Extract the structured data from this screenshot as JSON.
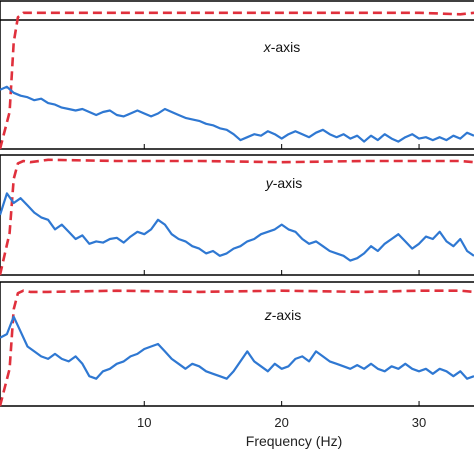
{
  "chart_data": {
    "type": "line",
    "xlabel": "Frequency (Hz)",
    "xlim": [
      -0.5,
      34
    ],
    "x_ticks": [
      "10",
      "20",
      "30"
    ],
    "x_tick_values": [
      10,
      20,
      30
    ],
    "colors": {
      "signal": "#2f78d2",
      "envelope": "#e0303c",
      "frame": "#000000"
    },
    "panels": [
      {
        "label_prefix": "x",
        "label_suffix": "-axis",
        "ylim": [
          0,
          1
        ],
        "series": [
          {
            "style": "dashed",
            "color": "#e0303c",
            "x": [
              -0.5,
              0.2,
              0.5,
              0.8,
              1.2,
              1.7,
              3,
              8,
              14,
              20,
              26,
              30,
              33,
              34
            ],
            "y": [
              0.0,
              0.25,
              0.72,
              0.89,
              0.92,
              0.92,
              0.92,
              0.92,
              0.92,
              0.92,
              0.92,
              0.92,
              0.91,
              0.92
            ]
          },
          {
            "style": "solid",
            "color": "#2f78d2",
            "x": [
              -0.5,
              0,
              0.5,
              1,
              1.5,
              2,
              2.5,
              3,
              3.5,
              4,
              4.5,
              5,
              5.5,
              6,
              6.5,
              7,
              7.5,
              8,
              8.5,
              9,
              9.5,
              10,
              10.5,
              11,
              11.5,
              12,
              12.5,
              13,
              13.5,
              14,
              14.5,
              15,
              15.5,
              16,
              16.5,
              17,
              17.5,
              18,
              18.5,
              19,
              19.5,
              20,
              20.5,
              21,
              21.5,
              22,
              22.5,
              23,
              23.5,
              24,
              24.5,
              25,
              25.5,
              26,
              26.5,
              27,
              27.5,
              28,
              28.5,
              29,
              29.5,
              30,
              30.5,
              31,
              31.5,
              32,
              32.5,
              33,
              33.5,
              34
            ],
            "y": [
              0.4,
              0.42,
              0.38,
              0.36,
              0.35,
              0.33,
              0.34,
              0.31,
              0.3,
              0.28,
              0.27,
              0.26,
              0.27,
              0.25,
              0.23,
              0.25,
              0.26,
              0.23,
              0.22,
              0.24,
              0.26,
              0.24,
              0.22,
              0.24,
              0.27,
              0.25,
              0.23,
              0.21,
              0.2,
              0.19,
              0.17,
              0.16,
              0.14,
              0.13,
              0.1,
              0.06,
              0.08,
              0.1,
              0.09,
              0.12,
              0.1,
              0.07,
              0.1,
              0.12,
              0.1,
              0.08,
              0.11,
              0.13,
              0.1,
              0.08,
              0.1,
              0.07,
              0.09,
              0.05,
              0.09,
              0.06,
              0.1,
              0.07,
              0.05,
              0.08,
              0.1,
              0.07,
              0.08,
              0.06,
              0.08,
              0.06,
              0.09,
              0.07,
              0.11,
              0.09
            ]
          }
        ]
      },
      {
        "label_prefix": "y",
        "label_suffix": "-axis",
        "ylim": [
          0,
          1
        ],
        "series": [
          {
            "style": "dashed",
            "color": "#e0303c",
            "x": [
              -0.5,
              0.2,
              0.5,
              0.8,
              1.2,
              1.7,
              3,
              8,
              14,
              20,
              26,
              30,
              33,
              34
            ],
            "y": [
              0.0,
              0.35,
              0.8,
              0.93,
              0.95,
              0.94,
              0.96,
              0.95,
              0.95,
              0.94,
              0.95,
              0.95,
              0.95,
              0.94
            ]
          },
          {
            "style": "solid",
            "color": "#2f78d2",
            "x": [
              -0.5,
              0,
              0.5,
              1,
              1.5,
              2,
              2.5,
              3,
              3.5,
              4,
              4.5,
              5,
              5.5,
              6,
              6.5,
              7,
              7.5,
              8,
              8.5,
              9,
              9.5,
              10,
              10.5,
              11,
              11.5,
              12,
              12.5,
              13,
              13.5,
              14,
              14.5,
              15,
              15.5,
              16,
              16.5,
              17,
              17.5,
              18,
              18.5,
              19,
              19.5,
              20,
              20.5,
              21,
              21.5,
              22,
              22.5,
              23,
              23.5,
              24,
              24.5,
              25,
              25.5,
              26,
              26.5,
              27,
              27.5,
              28,
              28.5,
              29,
              29.5,
              30,
              30.5,
              31,
              31.5,
              32,
              32.5,
              33,
              33.5,
              34
            ],
            "y": [
              0.5,
              0.68,
              0.6,
              0.64,
              0.58,
              0.52,
              0.48,
              0.46,
              0.38,
              0.42,
              0.36,
              0.3,
              0.33,
              0.26,
              0.28,
              0.27,
              0.3,
              0.31,
              0.27,
              0.32,
              0.36,
              0.34,
              0.38,
              0.46,
              0.42,
              0.34,
              0.3,
              0.28,
              0.24,
              0.22,
              0.18,
              0.2,
              0.16,
              0.18,
              0.22,
              0.24,
              0.28,
              0.3,
              0.34,
              0.36,
              0.38,
              0.42,
              0.38,
              0.36,
              0.3,
              0.26,
              0.28,
              0.24,
              0.2,
              0.18,
              0.16,
              0.12,
              0.14,
              0.18,
              0.24,
              0.2,
              0.26,
              0.3,
              0.34,
              0.28,
              0.22,
              0.26,
              0.32,
              0.3,
              0.36,
              0.28,
              0.24,
              0.3,
              0.2,
              0.16
            ]
          }
        ]
      },
      {
        "label_prefix": "z",
        "label_suffix": "-axis",
        "ylim": [
          0,
          1
        ],
        "series": [
          {
            "style": "dashed",
            "color": "#e0303c",
            "x": [
              -0.5,
              0.2,
              0.5,
              0.8,
              1.2,
              1.7,
              3,
              8,
              14,
              20,
              26,
              30,
              33,
              34
            ],
            "y": [
              0.0,
              0.3,
              0.78,
              0.91,
              0.93,
              0.92,
              0.92,
              0.93,
              0.92,
              0.93,
              0.92,
              0.93,
              0.93,
              0.92
            ]
          },
          {
            "style": "solid",
            "color": "#2f78d2",
            "x": [
              -0.5,
              0,
              0.5,
              1,
              1.5,
              2,
              2.5,
              3,
              3.5,
              4,
              4.5,
              5,
              5.5,
              6,
              6.5,
              7,
              7.5,
              8,
              8.5,
              9,
              9.5,
              10,
              10.5,
              11,
              11.5,
              12,
              12.5,
              13,
              13.5,
              14,
              14.5,
              15,
              15.5,
              16,
              16.5,
              17,
              17.5,
              18,
              18.5,
              19,
              19.5,
              20,
              20.5,
              21,
              21.5,
              22,
              22.5,
              23,
              23.5,
              24,
              24.5,
              25,
              25.5,
              26,
              26.5,
              27,
              27.5,
              28,
              28.5,
              29,
              29.5,
              30,
              30.5,
              31,
              31.5,
              32,
              32.5,
              33,
              33.5,
              34
            ],
            "y": [
              0.55,
              0.58,
              0.72,
              0.6,
              0.48,
              0.44,
              0.4,
              0.38,
              0.42,
              0.38,
              0.36,
              0.4,
              0.34,
              0.24,
              0.22,
              0.28,
              0.3,
              0.34,
              0.36,
              0.4,
              0.42,
              0.46,
              0.48,
              0.5,
              0.44,
              0.38,
              0.34,
              0.3,
              0.34,
              0.32,
              0.28,
              0.26,
              0.24,
              0.22,
              0.28,
              0.36,
              0.44,
              0.36,
              0.32,
              0.28,
              0.34,
              0.3,
              0.32,
              0.38,
              0.4,
              0.36,
              0.44,
              0.4,
              0.36,
              0.34,
              0.32,
              0.3,
              0.33,
              0.3,
              0.34,
              0.3,
              0.28,
              0.32,
              0.3,
              0.34,
              0.3,
              0.28,
              0.3,
              0.26,
              0.3,
              0.28,
              0.24,
              0.28,
              0.22,
              0.24
            ]
          }
        ]
      }
    ]
  }
}
